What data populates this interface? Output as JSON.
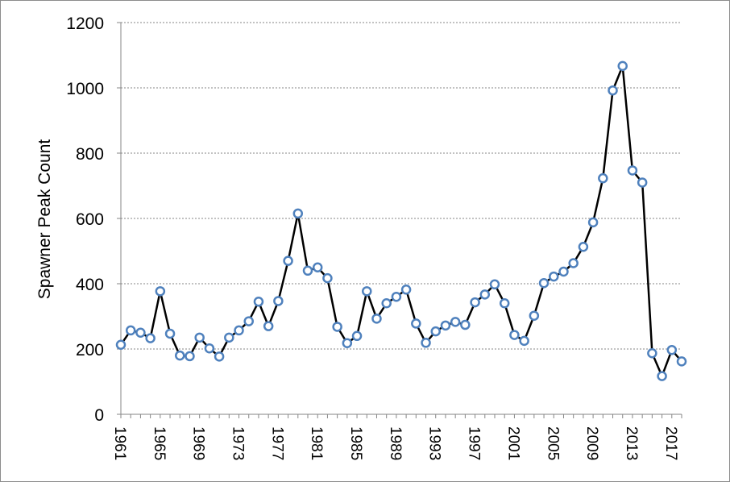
{
  "chart_data": {
    "type": "line",
    "title": "",
    "xlabel": "",
    "ylabel": "Spawner Peak Count",
    "ylim": [
      0,
      1200
    ],
    "yticks": [
      0,
      200,
      400,
      600,
      800,
      1000,
      1200
    ],
    "xticks": [
      1961,
      1965,
      1969,
      1973,
      1977,
      1981,
      1985,
      1989,
      1993,
      1997,
      2001,
      2005,
      2009,
      2013,
      2017
    ],
    "xlim": [
      1961,
      2018
    ],
    "grid": true,
    "legend": "none",
    "series": [
      {
        "x": [
          1961,
          1962,
          1963,
          1964,
          1965,
          1966,
          1967,
          1968,
          1969,
          1970,
          1971,
          1972,
          1973,
          1974,
          1975,
          1976,
          1977,
          1978,
          1979,
          1980,
          1981,
          1982,
          1983,
          1984,
          1985,
          1986,
          1987,
          1988,
          1989,
          1990,
          1991,
          1992,
          1993,
          1994,
          1995,
          1996,
          1997,
          1998,
          1999,
          2000,
          2001,
          2002,
          2003,
          2004,
          2005,
          2006,
          2007,
          2008,
          2009,
          2010,
          2011,
          2012,
          2013,
          2014,
          2015,
          2016,
          2017,
          2018
        ],
        "values": [
          213,
          257,
          250,
          233,
          377,
          247,
          180,
          178,
          235,
          202,
          177,
          235,
          257,
          285,
          345,
          270,
          347,
          470,
          615,
          440,
          450,
          417,
          268,
          218,
          240,
          377,
          293,
          340,
          360,
          382,
          278,
          219,
          254,
          272,
          283,
          274,
          343,
          367,
          398,
          340,
          243,
          225,
          302,
          402,
          422,
          437,
          463,
          513,
          588,
          723,
          992,
          1067,
          747,
          710,
          187,
          117,
          197,
          162
        ]
      }
    ],
    "colors": {
      "line": "#000000",
      "marker_edge": "#4f81bd",
      "marker_fill": "#ffffff",
      "grid": "#868686",
      "axis": "#868686"
    }
  }
}
